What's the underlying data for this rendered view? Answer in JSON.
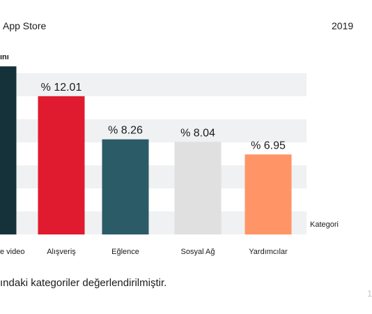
{
  "header": {
    "title": "App Store",
    "year": "2019"
  },
  "footnote": "ındaki kategoriler değerlendirilmiştir.",
  "corner_mark": "1",
  "chart_data": {
    "type": "bar",
    "title": "",
    "ylabel": "ını",
    "xlabel": "Kategori",
    "categories": [
      "e video",
      "Alışveriş",
      "Eğlence",
      "Sosyal Ağ",
      "Yardımcılar"
    ],
    "values": [
      14.6,
      12.01,
      8.26,
      8.04,
      6.95
    ],
    "value_labels": [
      "",
      "% 12.01",
      "% 8.26",
      "% 8.04",
      "% 6.95"
    ],
    "colors": [
      "#15323a",
      "#e01b2f",
      "#2b5b66",
      "#e0e0e0",
      "#ff9566"
    ],
    "ylim": [
      0,
      16
    ],
    "grid": true,
    "grid_style": "alternating-bands",
    "band_color": "#f0f1f3"
  }
}
